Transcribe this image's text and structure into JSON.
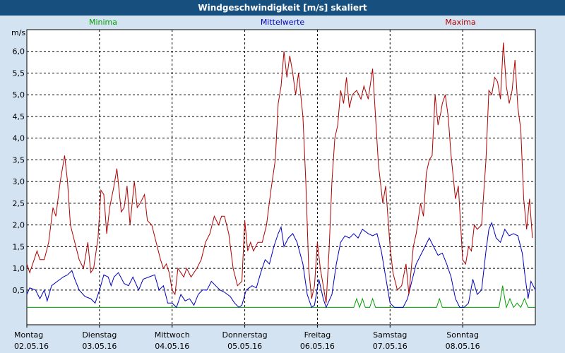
{
  "window_title": "Windgeschwindigkeit [m/s] skaliert",
  "chart_data": {
    "type": "line",
    "title": "Windgeschwindigkeit [m/s] skaliert",
    "ylabel": "m/s",
    "ylim": [
      -0.3,
      6.5
    ],
    "xlim": [
      0,
      7.0
    ],
    "yticks": [
      "0,5",
      "1,0",
      "1,5",
      "2,0",
      "2,5",
      "3,0",
      "3,5",
      "4,0",
      "4,5",
      "5,0",
      "5,5",
      "6,0"
    ],
    "ytick_values": [
      0.5,
      1.0,
      1.5,
      2.0,
      2.5,
      3.0,
      3.5,
      4.0,
      4.5,
      5.0,
      5.5,
      6.0
    ],
    "xticks": [
      {
        "day": "Montag",
        "date": "02.05.16",
        "x": 0
      },
      {
        "day": "Dienstag",
        "date": "03.05.16",
        "x": 1
      },
      {
        "day": "Mittwoch",
        "date": "04.05.16",
        "x": 2
      },
      {
        "day": "Donnerstag",
        "date": "05.05.16",
        "x": 3
      },
      {
        "day": "Freitag",
        "date": "06.05.16",
        "x": 4
      },
      {
        "day": "Samstag",
        "date": "07.05.16",
        "x": 5
      },
      {
        "day": "Sonntag",
        "date": "08.05.16",
        "x": 6
      }
    ],
    "grid": true,
    "legend_position": "top",
    "series": [
      {
        "name": "Minima",
        "color": "#00a000",
        "points": [
          [
            0,
            0.1
          ],
          [
            4.5,
            0.1
          ],
          [
            4.54,
            0.3
          ],
          [
            4.58,
            0.1
          ],
          [
            4.62,
            0.3
          ],
          [
            4.66,
            0.1
          ],
          [
            4.72,
            0.1
          ],
          [
            4.76,
            0.3
          ],
          [
            4.8,
            0.1
          ],
          [
            5.64,
            0.1
          ],
          [
            5.68,
            0.3
          ],
          [
            5.72,
            0.1
          ],
          [
            6.5,
            0.1
          ],
          [
            6.55,
            0.6
          ],
          [
            6.6,
            0.1
          ],
          [
            6.65,
            0.3
          ],
          [
            6.7,
            0.1
          ],
          [
            6.75,
            0.2
          ],
          [
            6.8,
            0.1
          ],
          [
            6.85,
            0.3
          ],
          [
            6.9,
            0.1
          ],
          [
            7.0,
            0.1
          ]
        ]
      },
      {
        "name": "Mittelwerte",
        "color": "#0000c0",
        "points": [
          [
            0,
            0.4
          ],
          [
            0.04,
            0.55
          ],
          [
            0.12,
            0.5
          ],
          [
            0.18,
            0.3
          ],
          [
            0.24,
            0.5
          ],
          [
            0.28,
            0.25
          ],
          [
            0.34,
            0.6
          ],
          [
            0.42,
            0.7
          ],
          [
            0.5,
            0.8
          ],
          [
            0.56,
            0.85
          ],
          [
            0.62,
            0.95
          ],
          [
            0.66,
            0.75
          ],
          [
            0.72,
            0.5
          ],
          [
            0.8,
            0.35
          ],
          [
            0.88,
            0.3
          ],
          [
            0.94,
            0.2
          ],
          [
            1.0,
            0.5
          ],
          [
            1.06,
            0.85
          ],
          [
            1.12,
            0.8
          ],
          [
            1.16,
            0.6
          ],
          [
            1.2,
            0.8
          ],
          [
            1.26,
            0.9
          ],
          [
            1.34,
            0.65
          ],
          [
            1.4,
            0.6
          ],
          [
            1.46,
            0.8
          ],
          [
            1.54,
            0.5
          ],
          [
            1.6,
            0.75
          ],
          [
            1.68,
            0.8
          ],
          [
            1.76,
            0.85
          ],
          [
            1.82,
            0.5
          ],
          [
            1.88,
            0.6
          ],
          [
            1.94,
            0.2
          ],
          [
            2.0,
            0.2
          ],
          [
            2.06,
            0.1
          ],
          [
            2.12,
            0.4
          ],
          [
            2.18,
            0.25
          ],
          [
            2.24,
            0.3
          ],
          [
            2.3,
            0.15
          ],
          [
            2.36,
            0.4
          ],
          [
            2.42,
            0.5
          ],
          [
            2.48,
            0.5
          ],
          [
            2.54,
            0.7
          ],
          [
            2.6,
            0.6
          ],
          [
            2.66,
            0.5
          ],
          [
            2.72,
            0.45
          ],
          [
            2.8,
            0.35
          ],
          [
            2.86,
            0.2
          ],
          [
            2.92,
            0.1
          ],
          [
            2.96,
            0.15
          ],
          [
            3.02,
            0.5
          ],
          [
            3.06,
            0.55
          ],
          [
            3.1,
            0.6
          ],
          [
            3.16,
            0.55
          ],
          [
            3.22,
            0.9
          ],
          [
            3.28,
            1.2
          ],
          [
            3.34,
            1.1
          ],
          [
            3.4,
            1.5
          ],
          [
            3.46,
            1.8
          ],
          [
            3.5,
            1.95
          ],
          [
            3.54,
            1.5
          ],
          [
            3.6,
            1.7
          ],
          [
            3.66,
            1.8
          ],
          [
            3.72,
            1.6
          ],
          [
            3.8,
            1.1
          ],
          [
            3.86,
            0.4
          ],
          [
            3.92,
            0.1
          ],
          [
            3.96,
            0.15
          ],
          [
            4.02,
            0.75
          ],
          [
            4.08,
            0.3
          ],
          [
            4.12,
            0.1
          ],
          [
            4.2,
            0.4
          ],
          [
            4.26,
            1.1
          ],
          [
            4.32,
            1.6
          ],
          [
            4.38,
            1.75
          ],
          [
            4.44,
            1.7
          ],
          [
            4.5,
            1.8
          ],
          [
            4.56,
            1.7
          ],
          [
            4.62,
            1.9
          ],
          [
            4.7,
            1.8
          ],
          [
            4.76,
            1.75
          ],
          [
            4.82,
            1.8
          ],
          [
            4.88,
            1.4
          ],
          [
            4.94,
            0.8
          ],
          [
            5.0,
            0.2
          ],
          [
            5.06,
            0.1
          ],
          [
            5.12,
            0.1
          ],
          [
            5.18,
            0.1
          ],
          [
            5.24,
            0.3
          ],
          [
            5.3,
            0.7
          ],
          [
            5.36,
            1.1
          ],
          [
            5.42,
            1.3
          ],
          [
            5.48,
            1.5
          ],
          [
            5.54,
            1.7
          ],
          [
            5.6,
            1.5
          ],
          [
            5.66,
            1.3
          ],
          [
            5.72,
            1.35
          ],
          [
            5.78,
            1.1
          ],
          [
            5.84,
            0.8
          ],
          [
            5.9,
            0.3
          ],
          [
            5.96,
            0.1
          ],
          [
            6.02,
            0.1
          ],
          [
            6.08,
            0.2
          ],
          [
            6.14,
            0.75
          ],
          [
            6.2,
            0.4
          ],
          [
            6.26,
            0.5
          ],
          [
            6.32,
            1.4
          ],
          [
            6.36,
            1.9
          ],
          [
            6.4,
            2.05
          ],
          [
            6.46,
            1.7
          ],
          [
            6.52,
            1.6
          ],
          [
            6.58,
            1.9
          ],
          [
            6.64,
            1.75
          ],
          [
            6.7,
            1.8
          ],
          [
            6.76,
            1.75
          ],
          [
            6.82,
            1.35
          ],
          [
            6.86,
            0.8
          ],
          [
            6.9,
            0.3
          ],
          [
            6.94,
            0.7
          ],
          [
            7.0,
            0.5
          ]
        ]
      },
      {
        "name": "Maxima",
        "color": "#b00000",
        "points": [
          [
            0,
            1.1
          ],
          [
            0.04,
            0.9
          ],
          [
            0.1,
            1.2
          ],
          [
            0.14,
            1.4
          ],
          [
            0.18,
            1.2
          ],
          [
            0.24,
            1.2
          ],
          [
            0.3,
            1.6
          ],
          [
            0.36,
            2.4
          ],
          [
            0.4,
            2.2
          ],
          [
            0.46,
            3.0
          ],
          [
            0.52,
            3.6
          ],
          [
            0.56,
            3.0
          ],
          [
            0.6,
            2.0
          ],
          [
            0.66,
            1.6
          ],
          [
            0.72,
            1.2
          ],
          [
            0.78,
            1.0
          ],
          [
            0.84,
            1.6
          ],
          [
            0.88,
            0.9
          ],
          [
            0.92,
            1.0
          ],
          [
            0.98,
            1.7
          ],
          [
            1.02,
            2.8
          ],
          [
            1.06,
            2.7
          ],
          [
            1.1,
            1.8
          ],
          [
            1.14,
            2.4
          ],
          [
            1.2,
            2.9
          ],
          [
            1.24,
            3.3
          ],
          [
            1.3,
            2.3
          ],
          [
            1.34,
            2.4
          ],
          [
            1.38,
            2.9
          ],
          [
            1.42,
            2.0
          ],
          [
            1.48,
            3.0
          ],
          [
            1.52,
            2.4
          ],
          [
            1.56,
            2.5
          ],
          [
            1.62,
            2.7
          ],
          [
            1.66,
            2.1
          ],
          [
            1.72,
            2.0
          ],
          [
            1.78,
            1.6
          ],
          [
            1.84,
            1.2
          ],
          [
            1.88,
            1.0
          ],
          [
            1.92,
            1.1
          ],
          [
            1.96,
            0.9
          ],
          [
            2.0,
            0.5
          ],
          [
            2.04,
            0.4
          ],
          [
            2.08,
            1.0
          ],
          [
            2.12,
            0.9
          ],
          [
            2.16,
            0.8
          ],
          [
            2.2,
            1.0
          ],
          [
            2.26,
            0.8
          ],
          [
            2.34,
            1.0
          ],
          [
            2.4,
            1.2
          ],
          [
            2.46,
            1.6
          ],
          [
            2.52,
            1.8
          ],
          [
            2.58,
            2.2
          ],
          [
            2.64,
            2.0
          ],
          [
            2.68,
            2.2
          ],
          [
            2.72,
            2.2
          ],
          [
            2.78,
            1.8
          ],
          [
            2.84,
            1.0
          ],
          [
            2.9,
            0.6
          ],
          [
            2.96,
            0.7
          ],
          [
            3.0,
            2.1
          ],
          [
            3.04,
            1.4
          ],
          [
            3.08,
            1.6
          ],
          [
            3.12,
            1.4
          ],
          [
            3.18,
            1.6
          ],
          [
            3.24,
            1.6
          ],
          [
            3.3,
            2.0
          ],
          [
            3.36,
            2.8
          ],
          [
            3.42,
            3.5
          ],
          [
            3.46,
            4.8
          ],
          [
            3.5,
            5.2
          ],
          [
            3.54,
            6.0
          ],
          [
            3.58,
            5.4
          ],
          [
            3.62,
            5.9
          ],
          [
            3.66,
            5.5
          ],
          [
            3.7,
            5.0
          ],
          [
            3.74,
            5.5
          ],
          [
            3.8,
            4.5
          ],
          [
            3.84,
            3.0
          ],
          [
            3.88,
            1.0
          ],
          [
            3.92,
            0.3
          ],
          [
            3.96,
            0.6
          ],
          [
            4.0,
            1.6
          ],
          [
            4.04,
            1.0
          ],
          [
            4.08,
            0.6
          ],
          [
            4.12,
            0.2
          ],
          [
            4.16,
            1.4
          ],
          [
            4.2,
            3.0
          ],
          [
            4.24,
            4.0
          ],
          [
            4.28,
            4.3
          ],
          [
            4.32,
            5.1
          ],
          [
            4.36,
            4.8
          ],
          [
            4.4,
            5.4
          ],
          [
            4.44,
            4.7
          ],
          [
            4.48,
            5.0
          ],
          [
            4.54,
            5.1
          ],
          [
            4.6,
            4.9
          ],
          [
            4.64,
            5.2
          ],
          [
            4.7,
            4.9
          ],
          [
            4.76,
            5.6
          ],
          [
            4.8,
            4.5
          ],
          [
            4.84,
            3.4
          ],
          [
            4.9,
            2.5
          ],
          [
            4.94,
            2.9
          ],
          [
            5.0,
            1.5
          ],
          [
            5.04,
            0.9
          ],
          [
            5.1,
            0.5
          ],
          [
            5.16,
            0.6
          ],
          [
            5.22,
            1.1
          ],
          [
            5.26,
            0.4
          ],
          [
            5.32,
            1.5
          ],
          [
            5.36,
            1.8
          ],
          [
            5.42,
            2.5
          ],
          [
            5.46,
            2.2
          ],
          [
            5.5,
            3.2
          ],
          [
            5.54,
            3.5
          ],
          [
            5.58,
            3.6
          ],
          [
            5.62,
            5.0
          ],
          [
            5.66,
            4.3
          ],
          [
            5.7,
            4.6
          ],
          [
            5.72,
            4.8
          ],
          [
            5.76,
            5.0
          ],
          [
            5.8,
            4.5
          ],
          [
            5.84,
            3.6
          ],
          [
            5.9,
            2.6
          ],
          [
            5.94,
            2.9
          ],
          [
            6.0,
            1.2
          ],
          [
            6.04,
            1.1
          ],
          [
            6.08,
            1.5
          ],
          [
            6.12,
            1.4
          ],
          [
            6.16,
            2.0
          ],
          [
            6.2,
            1.9
          ],
          [
            6.26,
            2.0
          ],
          [
            6.32,
            3.5
          ],
          [
            6.36,
            5.1
          ],
          [
            6.4,
            5.0
          ],
          [
            6.44,
            5.4
          ],
          [
            6.48,
            5.3
          ],
          [
            6.52,
            4.9
          ],
          [
            6.56,
            6.2
          ],
          [
            6.6,
            5.2
          ],
          [
            6.64,
            4.8
          ],
          [
            6.68,
            5.1
          ],
          [
            6.72,
            5.8
          ],
          [
            6.76,
            4.7
          ],
          [
            6.8,
            4.2
          ],
          [
            6.84,
            2.6
          ],
          [
            6.88,
            1.9
          ],
          [
            6.92,
            2.6
          ],
          [
            6.96,
            1.7
          ]
        ]
      }
    ]
  }
}
